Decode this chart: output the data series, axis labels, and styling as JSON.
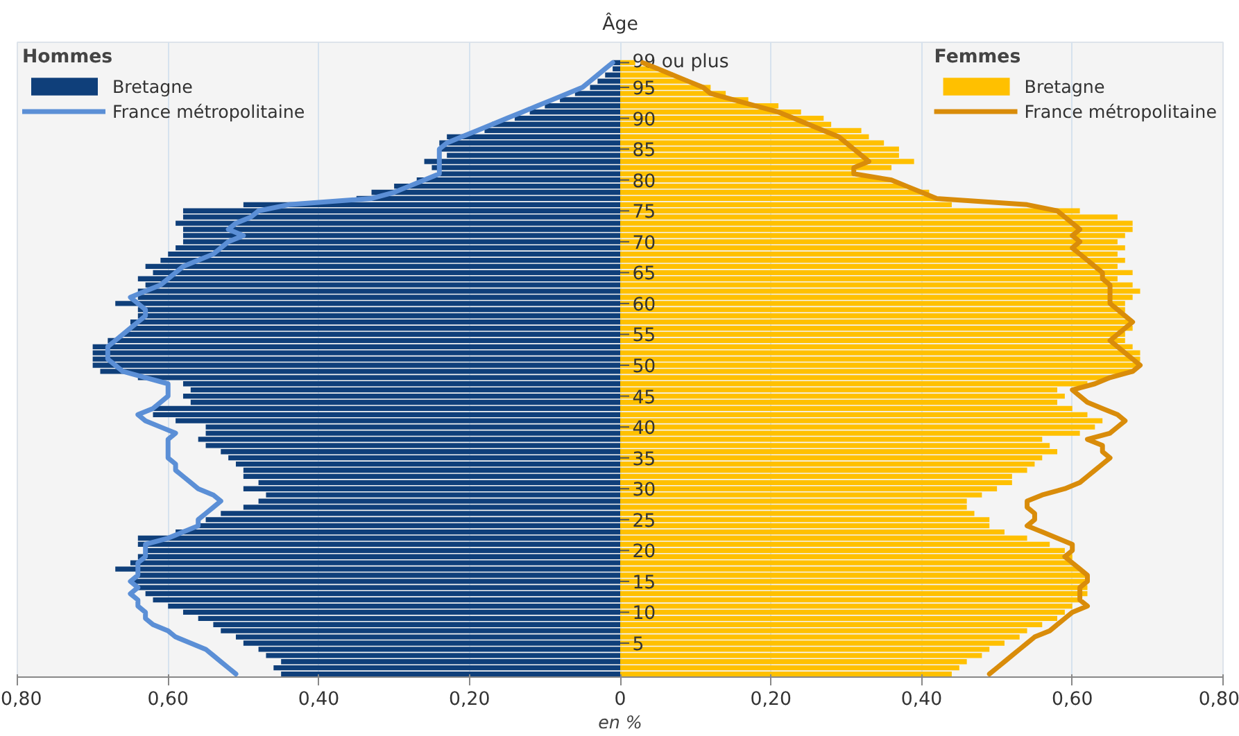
{
  "chart_data": {
    "type": "bar",
    "orientation": "horizontal",
    "ylabel": "Âge",
    "xlabel": "en %",
    "annotations": [
      "Hommes",
      "Femmes"
    ],
    "categories": [
      "99 ou plus",
      null,
      null,
      null,
      "95",
      null,
      null,
      null,
      null,
      "90",
      null,
      null,
      null,
      null,
      "85",
      null,
      null,
      null,
      null,
      "80",
      null,
      null,
      null,
      null,
      "75",
      null,
      null,
      null,
      null,
      "70",
      null,
      null,
      null,
      null,
      "65",
      null,
      null,
      null,
      null,
      "60",
      null,
      null,
      null,
      null,
      "55",
      null,
      null,
      null,
      null,
      "50",
      null,
      null,
      null,
      null,
      "45",
      null,
      null,
      null,
      null,
      "40",
      null,
      null,
      null,
      null,
      "35",
      null,
      null,
      null,
      null,
      "30",
      null,
      null,
      null,
      null,
      "25",
      null,
      null,
      null,
      null,
      "20",
      null,
      null,
      null,
      null,
      "15",
      null,
      null,
      null,
      null,
      "10",
      null,
      null,
      null,
      null,
      "5",
      null,
      null,
      null,
      null,
      null
    ],
    "xlim": [
      -0.8,
      0.8
    ],
    "xticks": [
      {
        "value": -0.8,
        "label": "0,80"
      },
      {
        "value": -0.6,
        "label": "0,60"
      },
      {
        "value": -0.4,
        "label": "0,40"
      },
      {
        "value": -0.2,
        "label": "0,20"
      },
      0,
      {
        "value": 0.2,
        "label": "0,20"
      },
      {
        "value": 0.4,
        "label": "0,40"
      },
      {
        "value": 0.6,
        "label": "0,60"
      },
      {
        "value": 0.8,
        "label": "0,80"
      }
    ],
    "grid": "x",
    "legend": "top",
    "stacked": true,
    "series": [
      {
        "name": "Bretagne",
        "color": "#0f3f7a",
        "values": [
          -0.01,
          -0.01,
          -0.02,
          -0.03,
          -0.04,
          -0.06,
          -0.08,
          -0.1,
          -0.12,
          -0.14,
          -0.17,
          -0.18,
          -0.23,
          -0.24,
          -0.24,
          -0.23,
          -0.26,
          -0.25,
          -0.24,
          -0.27,
          -0.3,
          -0.33,
          -0.35,
          -0.5,
          -0.58,
          -0.58,
          -0.59,
          -0.58,
          -0.58,
          -0.58,
          -0.59,
          -0.6,
          -0.61,
          -0.63,
          -0.62,
          -0.64,
          -0.63,
          -0.64,
          -0.64,
          -0.67,
          -0.64,
          -0.64,
          -0.65,
          -0.65,
          -0.66,
          -0.68,
          -0.7,
          -0.7,
          -0.7,
          -0.7,
          -0.69,
          -0.64,
          -0.58,
          -0.57,
          -0.58,
          -0.57,
          -0.62,
          -0.62,
          -0.59,
          -0.55,
          -0.55,
          -0.56,
          -0.55,
          -0.53,
          -0.52,
          -0.51,
          -0.5,
          -0.5,
          -0.48,
          -0.5,
          -0.47,
          -0.48,
          -0.5,
          -0.53,
          -0.55,
          -0.56,
          -0.59,
          -0.64,
          -0.64,
          -0.63,
          -0.64,
          -0.65,
          -0.67,
          -0.64,
          -0.65,
          -0.64,
          -0.63,
          -0.62,
          -0.6,
          -0.58,
          -0.56,
          -0.54,
          -0.53,
          -0.51,
          -0.5,
          -0.48,
          -0.47,
          -0.45,
          -0.46,
          -0.45
        ]
      },
      {
        "name": "France métropolitaine",
        "type": "line",
        "color": "#5b8fd6",
        "values": [
          -0.01,
          -0.02,
          -0.03,
          -0.04,
          -0.05,
          -0.07,
          -0.09,
          -0.11,
          -0.13,
          -0.15,
          -0.17,
          -0.19,
          -0.21,
          -0.23,
          -0.24,
          -0.24,
          -0.24,
          -0.24,
          -0.24,
          -0.26,
          -0.28,
          -0.3,
          -0.33,
          -0.44,
          -0.48,
          -0.49,
          -0.51,
          -0.52,
          -0.5,
          -0.52,
          -0.53,
          -0.54,
          -0.56,
          -0.58,
          -0.59,
          -0.6,
          -0.61,
          -0.63,
          -0.65,
          -0.64,
          -0.63,
          -0.63,
          -0.64,
          -0.65,
          -0.66,
          -0.67,
          -0.68,
          -0.68,
          -0.68,
          -0.67,
          -0.66,
          -0.63,
          -0.6,
          -0.6,
          -0.6,
          -0.61,
          -0.62,
          -0.64,
          -0.63,
          -0.61,
          -0.59,
          -0.6,
          -0.6,
          -0.6,
          -0.6,
          -0.59,
          -0.59,
          -0.58,
          -0.57,
          -0.56,
          -0.54,
          -0.53,
          -0.54,
          -0.55,
          -0.56,
          -0.56,
          -0.58,
          -0.6,
          -0.63,
          -0.63,
          -0.63,
          -0.64,
          -0.64,
          -0.64,
          -0.65,
          -0.64,
          -0.65,
          -0.64,
          -0.64,
          -0.63,
          -0.63,
          -0.62,
          -0.6,
          -0.59,
          -0.57,
          -0.55,
          -0.54,
          -0.53,
          -0.52,
          -0.51
        ]
      },
      {
        "name": "Bretagne",
        "color": "#ffc000",
        "values": [
          0.02,
          0.05,
          0.07,
          0.09,
          0.12,
          0.14,
          0.17,
          0.21,
          0.24,
          0.27,
          0.28,
          0.32,
          0.33,
          0.35,
          0.37,
          0.37,
          0.39,
          0.36,
          0.31,
          0.36,
          0.38,
          0.41,
          0.42,
          0.44,
          0.61,
          0.66,
          0.68,
          0.68,
          0.67,
          0.66,
          0.67,
          0.66,
          0.67,
          0.66,
          0.68,
          0.66,
          0.68,
          0.69,
          0.68,
          0.67,
          0.67,
          0.67,
          0.68,
          0.68,
          0.67,
          0.67,
          0.68,
          0.69,
          0.69,
          0.69,
          0.68,
          0.65,
          0.62,
          0.58,
          0.59,
          0.58,
          0.6,
          0.62,
          0.64,
          0.63,
          0.61,
          0.56,
          0.57,
          0.58,
          0.56,
          0.55,
          0.54,
          0.52,
          0.52,
          0.5,
          0.48,
          0.46,
          0.46,
          0.47,
          0.49,
          0.49,
          0.51,
          0.54,
          0.57,
          0.59,
          0.6,
          0.6,
          0.61,
          0.62,
          0.62,
          0.62,
          0.62,
          0.61,
          0.6,
          0.59,
          0.58,
          0.56,
          0.54,
          0.53,
          0.51,
          0.49,
          0.48,
          0.46,
          0.45,
          0.44
        ]
      },
      {
        "name": "France métropolitaine",
        "type": "line",
        "color": "#d98c0a",
        "values": [
          0.03,
          0.05,
          0.07,
          0.09,
          0.11,
          0.12,
          0.15,
          0.18,
          0.21,
          0.23,
          0.25,
          0.27,
          0.29,
          0.3,
          0.31,
          0.32,
          0.33,
          0.31,
          0.31,
          0.36,
          0.38,
          0.4,
          0.42,
          0.54,
          0.58,
          0.59,
          0.6,
          0.61,
          0.6,
          0.61,
          0.6,
          0.61,
          0.62,
          0.63,
          0.64,
          0.64,
          0.65,
          0.65,
          0.65,
          0.65,
          0.66,
          0.67,
          0.68,
          0.67,
          0.66,
          0.65,
          0.66,
          0.67,
          0.68,
          0.69,
          0.68,
          0.65,
          0.63,
          0.6,
          0.61,
          0.62,
          0.64,
          0.66,
          0.67,
          0.66,
          0.65,
          0.62,
          0.64,
          0.64,
          0.65,
          0.64,
          0.63,
          0.62,
          0.61,
          0.59,
          0.56,
          0.54,
          0.54,
          0.55,
          0.55,
          0.54,
          0.56,
          0.58,
          0.6,
          0.6,
          0.59,
          0.6,
          0.61,
          0.62,
          0.62,
          0.61,
          0.61,
          0.61,
          0.62,
          0.6,
          0.59,
          0.58,
          0.57,
          0.55,
          0.54,
          0.53,
          0.52,
          0.51,
          0.5,
          0.49
        ]
      }
    ]
  }
}
